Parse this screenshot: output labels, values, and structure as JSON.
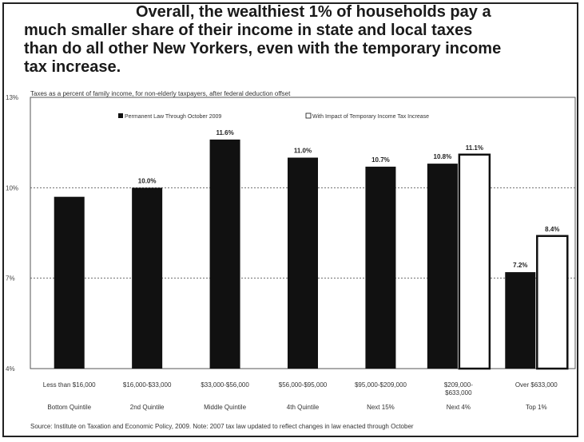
{
  "headline": {
    "line1": "Overall, the wealthiest 1% of households pay a",
    "line2": "much smaller share of their income in state and local taxes",
    "line3": "than do all other New Yorkers, even with the temporary income",
    "line4": "tax increase."
  },
  "source_note": "Source: Institute on Taxation and Economic Policy, 2009. Note: 2007 tax law updated to reflect changes in law enacted through October",
  "chart_data": {
    "type": "bar",
    "title": "Taxes as a percent of family income, for non-elderly taxpayers, after federal deduction offset",
    "ylim": [
      4,
      13
    ],
    "yticks": [
      {
        "value": 4,
        "label": "4%"
      },
      {
        "value": 7,
        "label": "7%"
      },
      {
        "value": 10,
        "label": "10%"
      },
      {
        "value": 13,
        "label": "13%"
      }
    ],
    "grid": true,
    "legend_position": "top",
    "categories": [
      "Less than $16,000",
      "$16,000-$33,000",
      "$33,000-$56,000",
      "$56,000-$95,000",
      "$95,000-$209,000",
      "$209,000-$633,000",
      "Over $633,000"
    ],
    "groups": [
      "Bottom Quintile",
      "2nd Quintile",
      "Middle Quintile",
      "4th Quintile",
      "Next 15%",
      "Next 4%",
      "Top 1%"
    ],
    "series": [
      {
        "name": "Permanent Law Through October 2009",
        "color": "#111111",
        "values": [
          9.7,
          10.0,
          11.6,
          11.0,
          10.7,
          10.8,
          7.2
        ],
        "labels": [
          "",
          "10.0%",
          "11.6%",
          "11.0%",
          "10.7%",
          "10.8%",
          "7.2%"
        ]
      },
      {
        "name": "With Impact of Temporary Income Tax Increase",
        "color": "#ffffff",
        "values": [
          null,
          null,
          null,
          null,
          null,
          11.1,
          8.4
        ],
        "labels": [
          "",
          "",
          "",
          "",
          "",
          "11.1%",
          "8.4%"
        ]
      }
    ]
  }
}
